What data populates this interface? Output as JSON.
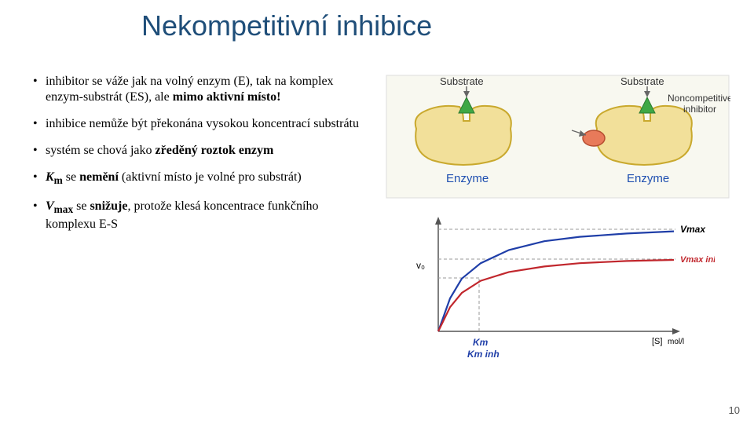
{
  "title": "Nekompetitivní inhibice",
  "bullets": [
    {
      "pre": "inhibitor se váže jak na volný enzym (E), tak na komplex enzym-substrát (ES), ale ",
      "bold": "mimo aktivní místo!",
      "post": ""
    },
    {
      "pre": "inhibice nemůže být překonána vysokou koncentrací substrátu",
      "bold": "",
      "post": ""
    },
    {
      "pre": "systém se chová jako ",
      "bold": "zředěný roztok enzym",
      "post": ""
    },
    {
      "km": "K",
      "ksub": "m",
      "mid": " se ",
      "bold": "nemění",
      "post": " (aktivní místo je volné pro substrát)"
    },
    {
      "km": "V",
      "ksub": "max",
      "mid": " se ",
      "bold": "snižuje",
      "post": ", protože klesá koncentrace funkčního komplexu E-S"
    }
  ],
  "diagram": {
    "substrate_left": "Substrate",
    "substrate_right": "Substrate",
    "inhibitor_label": "Noncompetitive\ninhibitor",
    "enzyme_left": "Enzyme",
    "enzyme_right": "Enzyme",
    "colors": {
      "enzyme_fill": "#f2e09a",
      "enzyme_stroke": "#c9a92e",
      "substrate_fill": "#3fa845",
      "inhibitor_fill": "#e87a5a",
      "label_enzyme": "#1f4fb0",
      "label_text": "#333333",
      "bg": "#f8f8f0"
    }
  },
  "chart": {
    "type": "line",
    "x_label": "[S]",
    "x_unit": "mol/l",
    "y_label": "v₀",
    "vmax": "Vmax",
    "vmax_inh": "Vmax inh",
    "km": "Km",
    "km_inh": "Km inh",
    "colors": {
      "axis": "#555555",
      "grid": "#999999",
      "curve_main": "#1f3ea8",
      "curve_inh": "#c1272d",
      "vmax_text": "#000000",
      "vmax_inh_text": "#c1272d",
      "km_text": "#1f3ea8",
      "bg": "#ffffff"
    },
    "xlim": [
      0,
      100
    ],
    "ylim": [
      0,
      100
    ],
    "km_x": 18,
    "vmax_y": 90,
    "vmax_inh_y": 64,
    "asymptote_main": 92,
    "asymptote_inh": 66,
    "curve_main_points": [
      [
        0,
        0
      ],
      [
        5,
        30
      ],
      [
        10,
        48
      ],
      [
        18,
        62
      ],
      [
        30,
        74
      ],
      [
        45,
        82
      ],
      [
        60,
        86
      ],
      [
        80,
        89
      ],
      [
        100,
        91
      ]
    ],
    "curve_inh_points": [
      [
        0,
        0
      ],
      [
        5,
        22
      ],
      [
        10,
        35
      ],
      [
        18,
        46
      ],
      [
        30,
        54
      ],
      [
        45,
        59
      ],
      [
        60,
        62
      ],
      [
        80,
        64
      ],
      [
        100,
        65
      ]
    ]
  },
  "page_number": "10"
}
